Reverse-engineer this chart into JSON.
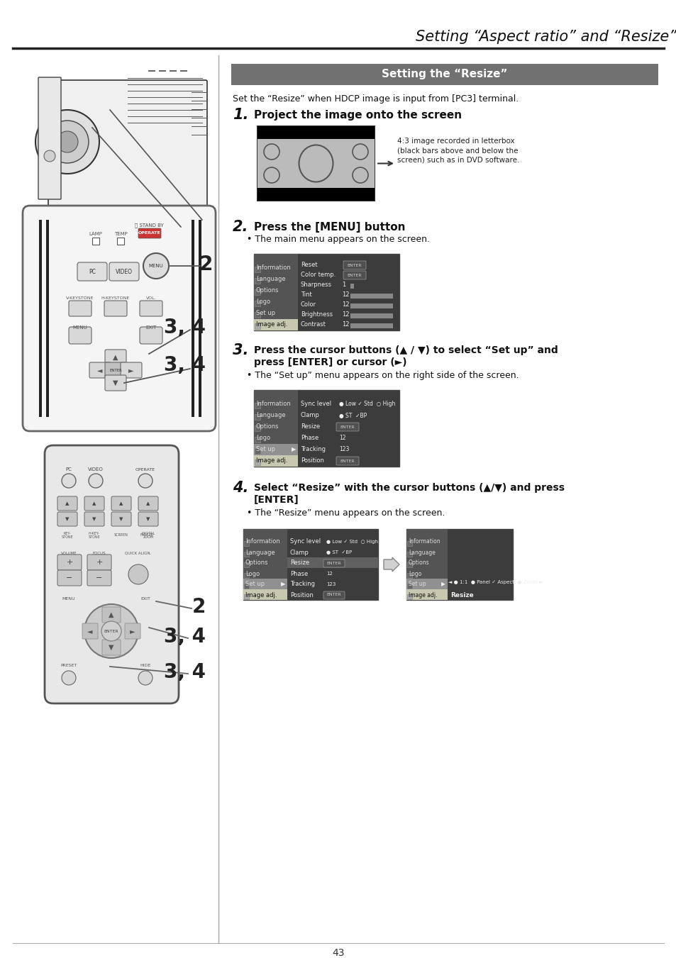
{
  "page_bg": "#ffffff",
  "title_text": "Setting “Aspect ratio” and “Resize”",
  "section_header_text": "Setting the “Resize”",
  "intro_text": "Set the “Resize” when HDCP image is input from [PC3] terminal.",
  "step1_num": "1.",
  "step1_text": "Project the image onto the screen",
  "step1_note": "4:3 image recorded in letterbox\n(black bars above and below the\nscreen) such as in DVD software.",
  "step2_num": "2.",
  "step2_text": "Press the [MENU] button",
  "step2_bullet": "The main menu appears on the screen.",
  "step3_num": "3.",
  "step3_text_a": "Press the cursor buttons (▲ / ▼) to select “Set up” and",
  "step3_text_b": "press [ENTER] or cursor (►)",
  "step3_bullet": "The “Set up” menu appears on the right side of the screen.",
  "step4_num": "4.",
  "step4_text_a": "Select “Resize” with the cursor buttons (▲/▼) and press",
  "step4_text_b": "[ENTER]",
  "step4_bullet": "The “Resize” menu appears on the screen.",
  "page_num": "43"
}
